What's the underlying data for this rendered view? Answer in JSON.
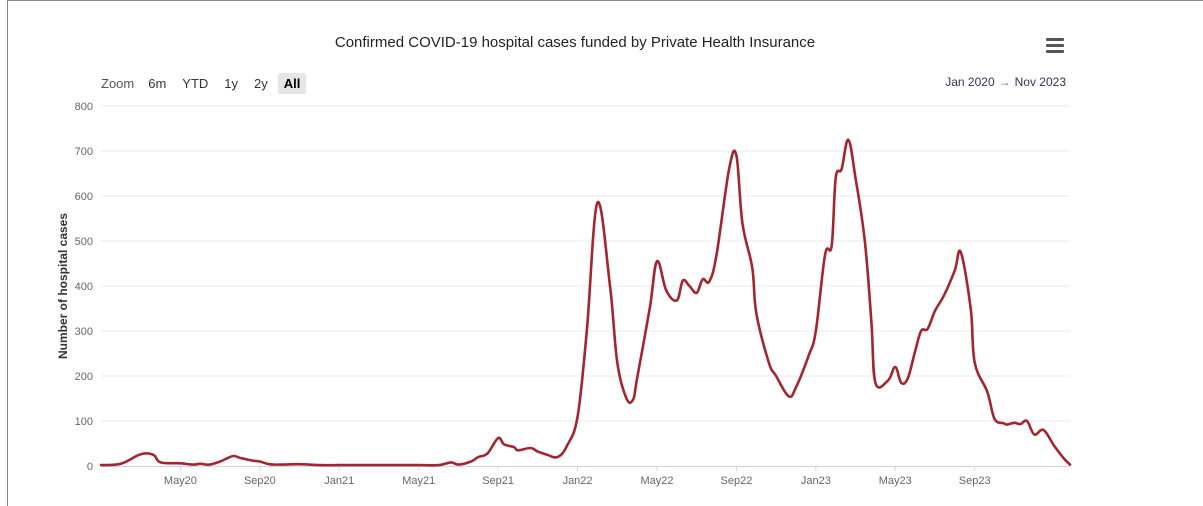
{
  "chart_data": {
    "type": "line",
    "title": "Confirmed COVID-19 hospital cases funded by Private Health Insurance",
    "xlabel": "",
    "ylabel": "Number of hospital cases",
    "ylim": [
      0,
      800
    ],
    "yticks": [
      0,
      100,
      200,
      300,
      400,
      500,
      600,
      700,
      800
    ],
    "xlim": [
      "2020-01",
      "2023-11"
    ],
    "xtick_labels": [
      "May20",
      "Sep20",
      "Jan21",
      "May21",
      "Sep21",
      "Jan22",
      "May22",
      "Sep22",
      "Jan23",
      "May23",
      "Sep23"
    ],
    "xtick_months": [
      4,
      8,
      12,
      16,
      20,
      24,
      28,
      32,
      36,
      40,
      44
    ],
    "grid": true,
    "color": "#a3262f",
    "series": [
      {
        "points": [
          [
            "2020-01",
            2
          ],
          [
            "2020-02",
            5
          ],
          [
            "2020-03",
            26
          ],
          [
            "2020-03-20",
            25
          ],
          [
            "2020-04",
            8
          ],
          [
            "2020-05",
            6
          ],
          [
            "2020-05-20",
            3
          ],
          [
            "2020-06",
            5
          ],
          [
            "2020-06-15",
            3
          ],
          [
            "2020-07",
            10
          ],
          [
            "2020-07-20",
            22
          ],
          [
            "2020-08",
            18
          ],
          [
            "2020-08-20",
            12
          ],
          [
            "2020-09",
            10
          ],
          [
            "2020-09-15",
            4
          ],
          [
            "2020-10",
            3
          ],
          [
            "2020-11",
            4
          ],
          [
            "2020-12",
            2
          ],
          [
            "2021-01",
            2
          ],
          [
            "2021-02",
            2
          ],
          [
            "2021-03",
            2
          ],
          [
            "2021-04",
            2
          ],
          [
            "2021-05",
            2
          ],
          [
            "2021-06",
            2
          ],
          [
            "2021-06-20",
            8
          ],
          [
            "2021-07",
            3
          ],
          [
            "2021-07-20",
            10
          ],
          [
            "2021-08",
            20
          ],
          [
            "2021-08-15",
            28
          ],
          [
            "2021-09",
            62
          ],
          [
            "2021-09-10",
            48
          ],
          [
            "2021-09-25",
            42
          ],
          [
            "2021-10",
            35
          ],
          [
            "2021-10-20",
            40
          ],
          [
            "2021-11",
            32
          ],
          [
            "2021-11-15",
            25
          ],
          [
            "2021-12",
            20
          ],
          [
            "2021-12-15",
            45
          ],
          [
            "2022-01",
            110
          ],
          [
            "2022-01-15",
            300
          ],
          [
            "2022-02",
            585
          ],
          [
            "2022-02-20",
            400
          ],
          [
            "2022-03",
            230
          ],
          [
            "2022-03-15",
            150
          ],
          [
            "2022-03-25",
            148
          ],
          [
            "2022-04",
            195
          ],
          [
            "2022-04-20",
            350
          ],
          [
            "2022-05",
            455
          ],
          [
            "2022-05-15",
            390
          ],
          [
            "2022-06",
            368
          ],
          [
            "2022-06-10",
            412
          ],
          [
            "2022-06-20",
            400
          ],
          [
            "2022-07",
            385
          ],
          [
            "2022-07-10",
            415
          ],
          [
            "2022-07-20",
            410
          ],
          [
            "2022-08",
            470
          ],
          [
            "2022-08-20",
            660
          ],
          [
            "2022-09",
            690
          ],
          [
            "2022-09-10",
            540
          ],
          [
            "2022-09-25",
            440
          ],
          [
            "2022-10",
            340
          ],
          [
            "2022-10-20",
            230
          ],
          [
            "2022-11",
            200
          ],
          [
            "2022-11-20",
            155
          ],
          [
            "2022-12",
            175
          ],
          [
            "2022-12-20",
            245
          ],
          [
            "2023-01",
            300
          ],
          [
            "2023-01-15",
            470
          ],
          [
            "2023-01-25",
            490
          ],
          [
            "2023-02",
            640
          ],
          [
            "2023-02-10",
            660
          ],
          [
            "2023-02-20",
            725
          ],
          [
            "2023-03",
            640
          ],
          [
            "2023-03-15",
            500
          ],
          [
            "2023-03-25",
            320
          ],
          [
            "2023-04",
            185
          ],
          [
            "2023-04-20",
            190
          ],
          [
            "2023-05",
            220
          ],
          [
            "2023-05-10",
            185
          ],
          [
            "2023-05-20",
            195
          ],
          [
            "2023-06",
            255
          ],
          [
            "2023-06-10",
            300
          ],
          [
            "2023-06-20",
            305
          ],
          [
            "2023-07",
            345
          ],
          [
            "2023-07-15",
            380
          ],
          [
            "2023-08",
            435
          ],
          [
            "2023-08-10",
            475
          ],
          [
            "2023-08-25",
            350
          ],
          [
            "2023-09",
            230
          ],
          [
            "2023-09-20",
            165
          ],
          [
            "2023-10",
            105
          ],
          [
            "2023-10-15",
            95
          ],
          [
            "2023-10-20",
            92
          ],
          [
            "2023-11",
            96
          ],
          [
            "2023-11-10",
            93
          ],
          [
            "2023-11-20",
            100
          ],
          [
            "2023-12",
            70
          ],
          [
            "2023-12-15",
            80
          ],
          [
            "2024-01",
            45
          ],
          [
            "2024-01-15",
            18
          ],
          [
            "2024-01-25",
            3
          ]
        ]
      }
    ]
  },
  "toolbar": {
    "zoom_label": "Zoom",
    "buttons": [
      "6m",
      "YTD",
      "1y",
      "2y",
      "All"
    ],
    "active": "All"
  },
  "date_range": {
    "from": "Jan 2020",
    "arrow": "→",
    "to": "Nov 2023"
  },
  "icons": {
    "menu": "hamburger-menu-icon"
  }
}
